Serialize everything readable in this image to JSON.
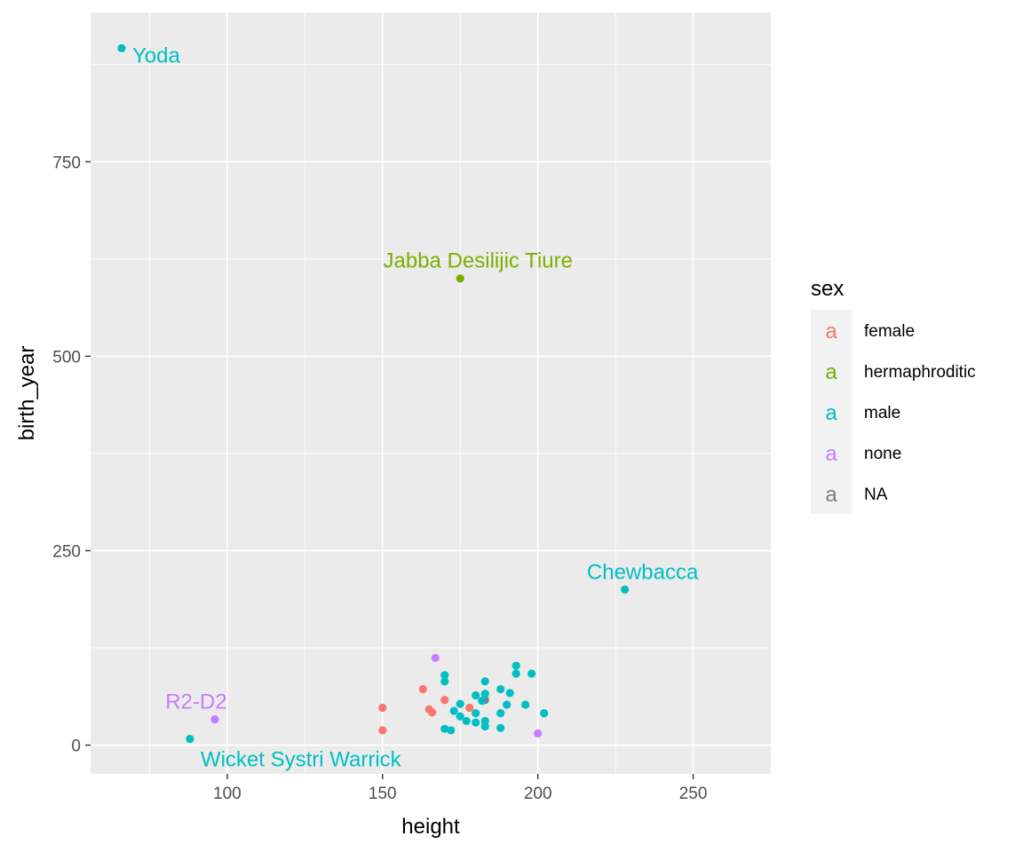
{
  "chart_data": {
    "type": "scatter",
    "xlabel": "height",
    "ylabel": "birth_year",
    "xlim": [
      56,
      275
    ],
    "ylim": [
      -37,
      942
    ],
    "x_ticks": [
      100,
      150,
      200,
      250
    ],
    "x_minor_ticks": [
      75,
      125,
      175,
      225
    ],
    "y_ticks": [
      0,
      250,
      500,
      750
    ],
    "y_minor_ticks": [
      125,
      375,
      625,
      875
    ],
    "grid": true,
    "legend": {
      "title": "sex",
      "placement": "right",
      "glyph": "a",
      "entries": [
        {
          "key": "female",
          "label": "female",
          "color": "#F8766D"
        },
        {
          "key": "hermaphroditic",
          "label": "hermaphroditic",
          "color": "#7CAE00"
        },
        {
          "key": "male",
          "label": "male",
          "color": "#00BFC4"
        },
        {
          "key": "none",
          "label": "none",
          "color": "#C77CFF"
        },
        {
          "key": "NA",
          "label": "NA",
          "color": "#7F7F7F"
        }
      ]
    },
    "colors": {
      "panel_background": "#EBEBEB",
      "grid_line": "#FFFFFF",
      "legend_key_background": "#F2F2F2"
    },
    "points": [
      {
        "x": 66,
        "y": 896,
        "sex": "male"
      },
      {
        "x": 175,
        "y": 600,
        "sex": "hermaphroditic"
      },
      {
        "x": 228,
        "y": 200,
        "sex": "male"
      },
      {
        "x": 96,
        "y": 33,
        "sex": "none"
      },
      {
        "x": 88,
        "y": 8,
        "sex": "male"
      },
      {
        "x": 167,
        "y": 112,
        "sex": "none"
      },
      {
        "x": 200,
        "y": 15,
        "sex": "none"
      },
      {
        "x": 150,
        "y": 48,
        "sex": "female"
      },
      {
        "x": 150,
        "y": 19,
        "sex": "female"
      },
      {
        "x": 163,
        "y": 72,
        "sex": "female"
      },
      {
        "x": 165,
        "y": 46,
        "sex": "female"
      },
      {
        "x": 166,
        "y": 42,
        "sex": "female"
      },
      {
        "x": 170,
        "y": 58,
        "sex": "female"
      },
      {
        "x": 178,
        "y": 48,
        "sex": "female"
      },
      {
        "x": 183,
        "y": 58,
        "sex": "NA"
      },
      {
        "x": 170,
        "y": 90,
        "sex": "male"
      },
      {
        "x": 170,
        "y": 82,
        "sex": "male"
      },
      {
        "x": 172,
        "y": 19,
        "sex": "male"
      },
      {
        "x": 170,
        "y": 21,
        "sex": "male"
      },
      {
        "x": 173,
        "y": 44,
        "sex": "male"
      },
      {
        "x": 175,
        "y": 53,
        "sex": "male"
      },
      {
        "x": 175,
        "y": 37,
        "sex": "male"
      },
      {
        "x": 177,
        "y": 31,
        "sex": "male"
      },
      {
        "x": 180,
        "y": 64,
        "sex": "male"
      },
      {
        "x": 180,
        "y": 41,
        "sex": "male"
      },
      {
        "x": 180,
        "y": 29,
        "sex": "male"
      },
      {
        "x": 182,
        "y": 57,
        "sex": "male"
      },
      {
        "x": 183,
        "y": 82,
        "sex": "male"
      },
      {
        "x": 183,
        "y": 66,
        "sex": "male"
      },
      {
        "x": 183,
        "y": 31,
        "sex": "male"
      },
      {
        "x": 183,
        "y": 24,
        "sex": "male"
      },
      {
        "x": 188,
        "y": 72,
        "sex": "male"
      },
      {
        "x": 188,
        "y": 41,
        "sex": "male"
      },
      {
        "x": 188,
        "y": 22,
        "sex": "male"
      },
      {
        "x": 190,
        "y": 52,
        "sex": "male"
      },
      {
        "x": 191,
        "y": 67,
        "sex": "male"
      },
      {
        "x": 193,
        "y": 102,
        "sex": "male"
      },
      {
        "x": 193,
        "y": 92,
        "sex": "male"
      },
      {
        "x": 196,
        "y": 52,
        "sex": "male"
      },
      {
        "x": 198,
        "y": 92,
        "sex": "male"
      },
      {
        "x": 202,
        "y": 41,
        "sex": "male"
      }
    ],
    "annotations": [
      {
        "text": "Yoda",
        "x": 66,
        "y": 896,
        "sex": "male",
        "anchor": "start",
        "dx": 12,
        "dy": 16
      },
      {
        "text": "Jabba Desilijic Tiure",
        "x": 175,
        "y": 600,
        "sex": "hermaphroditic",
        "anchor": "middle",
        "dx": 20,
        "dy": -12
      },
      {
        "text": "Chewbacca",
        "x": 228,
        "y": 200,
        "sex": "male",
        "anchor": "middle",
        "dx": 20,
        "dy": -12
      },
      {
        "text": "R2-D2",
        "x": 96,
        "y": 33,
        "sex": "none",
        "anchor": "middle",
        "dx": -21,
        "dy": -12
      },
      {
        "text": "Wicket Systri Warrick",
        "x": 88,
        "y": 8,
        "sex": "male",
        "anchor": "start",
        "dx": 12,
        "dy": 31
      }
    ]
  }
}
